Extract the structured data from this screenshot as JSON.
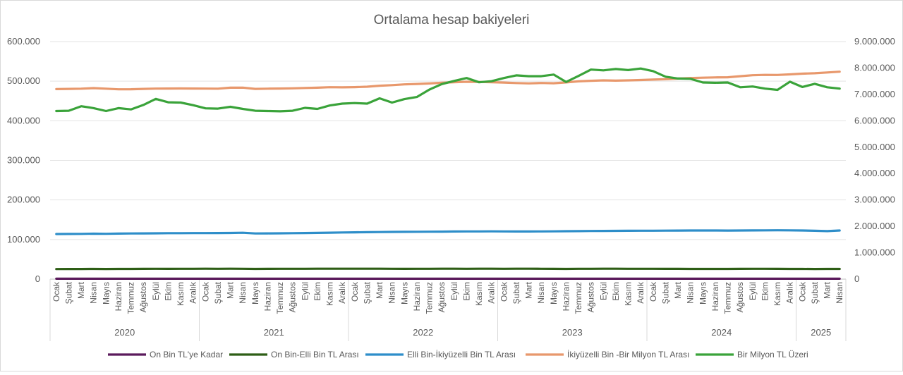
{
  "chart_data": {
    "type": "line",
    "title": "Ortalama hesap bakiyeleri",
    "xlabel": "",
    "ylabel": "",
    "y_left": {
      "range": [
        0,
        600000
      ],
      "ticks": [
        0,
        100000,
        200000,
        300000,
        400000,
        500000,
        600000
      ],
      "tick_labels": [
        "0",
        "100.000",
        "200.000",
        "300.000",
        "400.000",
        "500.000",
        "600.000"
      ]
    },
    "y_right": {
      "range": [
        0,
        9000000
      ],
      "ticks": [
        0,
        1000000,
        2000000,
        3000000,
        4000000,
        5000000,
        6000000,
        7000000,
        8000000,
        9000000
      ],
      "tick_labels": [
        "0",
        "1.000.000",
        "2.000.000",
        "3.000.000",
        "4.000.000",
        "5.000.000",
        "6.000.000",
        "7.000.000",
        "8.000.000",
        "9.000.000"
      ]
    },
    "grid": true,
    "legend_position": "bottom",
    "x": {
      "months": [
        "Ocak",
        "Şubat",
        "Mart",
        "Nisan",
        "Mayıs",
        "Haziran",
        "Temmuz",
        "Ağustos",
        "Eylül",
        "Ekim",
        "Kasım",
        "Aralık",
        "Ocak",
        "Şubat",
        "Mart",
        "Nisan",
        "Mayıs",
        "Haziran",
        "Temmuz",
        "Ağustos",
        "Eylül",
        "Ekim",
        "Kasım",
        "Aralık",
        "Ocak",
        "Şubat",
        "Mart",
        "Nisan",
        "Mayıs",
        "Haziran",
        "Temmuz",
        "Ağustos",
        "Eylül",
        "Ekim",
        "Kasım",
        "Aralık",
        "Ocak",
        "Şubat",
        "Mart",
        "Nisan",
        "Mayıs",
        "Haziran",
        "Temmuz",
        "Ağustos",
        "Eylül",
        "Ekim",
        "Kasım",
        "Aralık",
        "Ocak",
        "Şubat",
        "Mart",
        "Nisan",
        "Mayıs",
        "Haziran",
        "Temmuz",
        "Ağustos",
        "Eylül",
        "Ekim",
        "Kasım",
        "Aralık",
        "Ocak",
        "Şubat",
        "Mart",
        "Nisan"
      ],
      "years": [
        {
          "label": "2020",
          "count": 12
        },
        {
          "label": "2021",
          "count": 12
        },
        {
          "label": "2022",
          "count": 12
        },
        {
          "label": "2023",
          "count": 12
        },
        {
          "label": "2024",
          "count": 12
        },
        {
          "label": "2025",
          "count": 4
        }
      ]
    },
    "series": [
      {
        "name": "On Bin TL'ye Kadar",
        "color": "#5b1a5c",
        "axis": "left",
        "values": [
          1000,
          1000,
          1000,
          1000,
          1000,
          1000,
          1000,
          1000,
          1000,
          1000,
          1000,
          1000,
          1000,
          1000,
          1000,
          1000,
          1000,
          1000,
          1000,
          1000,
          1000,
          1000,
          1000,
          1000,
          1000,
          1000,
          1000,
          1000,
          1000,
          1000,
          1000,
          1000,
          1000,
          1000,
          1000,
          1000,
          1000,
          1000,
          1000,
          1000,
          1000,
          1000,
          1000,
          1000,
          1000,
          1000,
          1000,
          1000,
          1000,
          1000,
          1000,
          1000,
          1000,
          1000,
          1000,
          1000,
          1000,
          1000,
          1000,
          1000,
          1000,
          1000,
          1000,
          1000
        ]
      },
      {
        "name": "On Bin-Elli Bin TL Arası",
        "color": "#2e5e16",
        "axis": "left",
        "values": [
          25500,
          25600,
          25700,
          25800,
          25700,
          25800,
          25900,
          26000,
          26100,
          26000,
          26100,
          26200,
          26300,
          26200,
          26300,
          26100,
          25900,
          26000,
          26100,
          26200,
          26200,
          26300,
          26300,
          26400,
          26300,
          26400,
          26400,
          26200,
          26000,
          26100,
          26200,
          26300,
          26300,
          26200,
          26300,
          26300,
          26200,
          26300,
          26300,
          26100,
          26000,
          25900,
          26100,
          26200,
          26300,
          26400,
          26200,
          26100,
          26100,
          26000,
          26000,
          25900,
          25900,
          25800,
          25900,
          26000,
          26100,
          26100,
          26000,
          25900,
          25800,
          25700,
          25800,
          25800
        ]
      },
      {
        "name": "Elli Bin-İkiyüzelli Bin TL Arası",
        "color": "#2e8ec9",
        "axis": "left",
        "values": [
          114000,
          114200,
          114300,
          114800,
          114500,
          115000,
          115300,
          115600,
          115800,
          116000,
          116100,
          116300,
          116300,
          116400,
          116600,
          117200,
          115400,
          115600,
          115800,
          116100,
          116400,
          116800,
          117400,
          117800,
          118200,
          118600,
          119000,
          119300,
          119500,
          119600,
          119800,
          120000,
          120300,
          120500,
          120600,
          120800,
          120600,
          120400,
          120400,
          120600,
          120800,
          121000,
          121300,
          121600,
          121800,
          122000,
          122200,
          122400,
          122400,
          122500,
          122700,
          122800,
          122900,
          122800,
          122600,
          122800,
          123000,
          123200,
          123400,
          123200,
          122800,
          122200,
          121200,
          122800
        ]
      },
      {
        "name": "İkiyüzelli Bin -Bir Milyon  TL Arası",
        "color": "#e8986c",
        "axis": "left",
        "values": [
          480000,
          480500,
          481000,
          482500,
          481000,
          479500,
          479700,
          480500,
          481200,
          481500,
          481600,
          481500,
          481200,
          481100,
          483500,
          483700,
          480500,
          481000,
          481500,
          482000,
          482800,
          483500,
          484800,
          484500,
          485000,
          486000,
          488500,
          490000,
          492000,
          493000,
          494200,
          496000,
          497500,
          498500,
          498200,
          497500,
          496500,
          495300,
          494500,
          495500,
          494800,
          497000,
          499500,
          501000,
          502000,
          501300,
          502000,
          503000,
          504000,
          505000,
          506500,
          508000,
          508800,
          509500,
          510000,
          512500,
          515000,
          516000,
          515800,
          517200,
          519000,
          520000,
          522000,
          524000
        ]
      },
      {
        "name": "Bir Milyon TL Üzeri",
        "color": "#3aa33a",
        "axis": "right",
        "values": [
          6370000,
          6380000,
          6550000,
          6480000,
          6370000,
          6480000,
          6430000,
          6600000,
          6830000,
          6700000,
          6690000,
          6590000,
          6470000,
          6460000,
          6530000,
          6450000,
          6380000,
          6370000,
          6360000,
          6380000,
          6490000,
          6450000,
          6580000,
          6650000,
          6670000,
          6650000,
          6850000,
          6690000,
          6820000,
          6900000,
          7180000,
          7390000,
          7510000,
          7620000,
          7460000,
          7500000,
          7620000,
          7720000,
          7690000,
          7690000,
          7750000,
          7470000,
          7700000,
          7940000,
          7910000,
          7960000,
          7920000,
          7980000,
          7880000,
          7670000,
          7600000,
          7590000,
          7450000,
          7440000,
          7450000,
          7270000,
          7300000,
          7220000,
          7170000,
          7480000,
          7280000,
          7400000,
          7270000,
          7220000
        ]
      }
    ]
  }
}
